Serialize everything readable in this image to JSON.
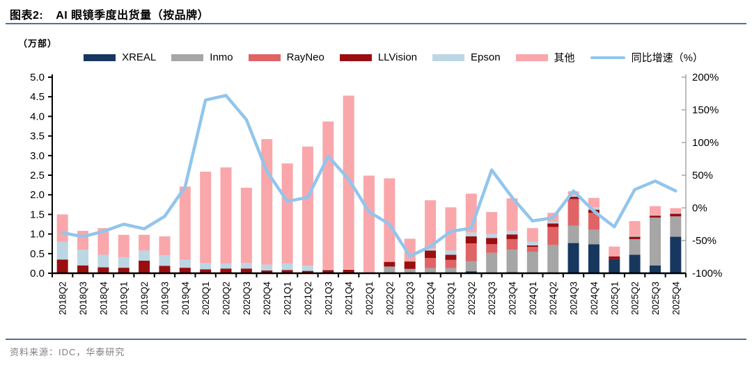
{
  "header": {
    "figure_label": "图表2:",
    "title": "AI 眼镜季度出货量（按品牌）"
  },
  "axis_unit": "（万部）",
  "footer": {
    "source": "资料来源：IDC，华泰研究"
  },
  "colors": {
    "title_rule": "#4F7099",
    "right_axis_gray": "#A6A6A6",
    "footer_text": "#7F7F7F",
    "line_blue": "#92C5EC"
  },
  "chart_data": {
    "type": "bar",
    "subtype": "stacked-bars-with-yoy-line",
    "title": "AI 眼镜季度出货量（按品牌）",
    "unit": "万部",
    "categories": [
      "2018Q2",
      "2018Q3",
      "2018Q4",
      "2019Q1",
      "2019Q2",
      "2019Q3",
      "2019Q4",
      "2020Q1",
      "2020Q2",
      "2020Q3",
      "2020Q4",
      "2021Q1",
      "2021Q2",
      "2021Q3",
      "2021Q4",
      "2022Q1",
      "2022Q2",
      "2022Q3",
      "2022Q4",
      "2023Q1",
      "2023Q2",
      "2023Q3",
      "2023Q4",
      "2024Q1",
      "2024Q2",
      "2024Q3",
      "2024Q4",
      "2025Q1",
      "2025Q2",
      "2025Q3",
      "2025Q4"
    ],
    "series": [
      {
        "name": "XREAL",
        "color": "#17375E",
        "values": [
          0,
          0,
          0,
          0,
          0,
          0,
          0,
          0,
          0,
          0,
          0,
          0,
          0,
          0,
          0,
          0,
          0,
          0,
          0,
          0,
          0.05,
          0,
          0.03,
          0,
          0,
          0.77,
          0.74,
          0.36,
          0.47,
          0.2,
          0.93
        ]
      },
      {
        "name": "Inmo",
        "color": "#A6A6A6",
        "values": [
          0,
          0,
          0,
          0,
          0,
          0,
          0,
          0,
          0,
          0,
          0,
          0,
          0,
          0,
          0,
          0,
          0.17,
          0.11,
          0.13,
          0.13,
          0.26,
          0.52,
          0.57,
          0.55,
          0.72,
          0.44,
          0.37,
          0,
          0.4,
          1.22,
          0.52
        ]
      },
      {
        "name": "RayNeo",
        "color": "#E06466",
        "values": [
          0,
          0,
          0,
          0,
          0,
          0,
          0,
          0,
          0,
          0,
          0,
          0,
          0,
          0,
          0,
          0,
          0,
          0,
          0.26,
          0.21,
          0.45,
          0.22,
          0.27,
          0.12,
          0.46,
          0.68,
          0.43,
          0,
          0,
          0,
          0
        ]
      },
      {
        "name": "LLVision",
        "color": "#9A0E10",
        "values": [
          0.35,
          0.2,
          0.15,
          0.14,
          0.32,
          0.19,
          0.14,
          0.1,
          0.12,
          0.12,
          0.07,
          0.08,
          0.06,
          0.08,
          0.09,
          0,
          0.12,
          0.19,
          0.19,
          0.13,
          0.18,
          0.16,
          0.12,
          0.04,
          0.09,
          0.06,
          0.08,
          0.07,
          0.06,
          0.05,
          0.07
        ]
      },
      {
        "name": "Epson",
        "color": "#BCD6E4",
        "values": [
          0.45,
          0.4,
          0.32,
          0.27,
          0.26,
          0.27,
          0.2,
          0.16,
          0.13,
          0.14,
          0.15,
          0.17,
          0.13,
          0.02,
          0.02,
          0,
          0,
          0,
          0.05,
          0.11,
          0.1,
          0.1,
          0.09,
          0.09,
          0.04,
          0.04,
          0.06,
          0,
          0.02,
          0.02,
          0.02
        ]
      },
      {
        "name": "其他",
        "color": "#F9A7AB",
        "values": [
          0.7,
          0.48,
          0.68,
          0.57,
          0.4,
          0.48,
          1.87,
          2.33,
          2.45,
          1.92,
          3.2,
          2.55,
          3.04,
          3.77,
          4.42,
          2.49,
          2.13,
          0.58,
          1.23,
          1.1,
          0.99,
          0.56,
          0.83,
          0.35,
          0.23,
          0.1,
          0.24,
          0.25,
          0.38,
          0.22,
          0.12
        ]
      }
    ],
    "line_series": {
      "name": "同比增速（%）",
      "color": "#92C5EC",
      "axis": "right",
      "values": [
        -38,
        -44,
        -36,
        -25,
        -32,
        -13,
        32,
        165,
        172,
        135,
        56,
        10,
        16,
        79,
        44,
        -6,
        -25,
        -74,
        -59,
        -36,
        -31,
        58,
        16,
        -20,
        -15,
        26,
        -5,
        -29,
        28,
        41,
        26
      ]
    },
    "left_axis": {
      "min": 0,
      "max": 5,
      "step": 0.5,
      "labels": [
        "5.0",
        "4.5",
        "4.0",
        "3.5",
        "3.0",
        "2.5",
        "2.0",
        "1.5",
        "1.0",
        "0.5",
        "0.0"
      ]
    },
    "right_axis": {
      "min": -100,
      "max": 200,
      "step": 50,
      "labels": [
        "200%",
        "150%",
        "100%",
        "50%",
        "0%",
        "-50%",
        "-100%"
      ]
    },
    "grid": false,
    "legend_position": "top"
  }
}
